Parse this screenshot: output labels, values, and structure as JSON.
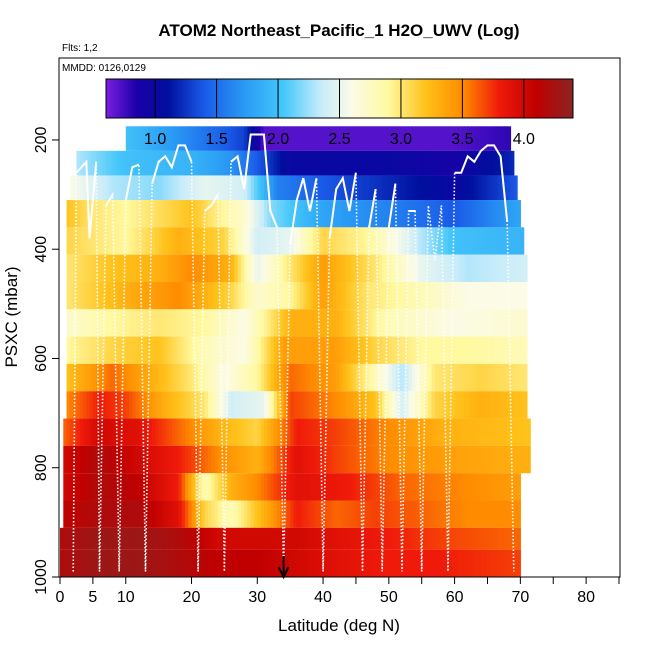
{
  "chart_data": {
    "type": "heatmap",
    "title": "ATOM2 Northeast_Pacific_1 H2O_UWV (Log)",
    "flights_note": "Flts: 1,2",
    "date_note": "MMDD: 0126,0129",
    "xlabel": "Latitude (deg N)",
    "ylabel": "PSXC (mbar)",
    "xlim": [
      0,
      85
    ],
    "ylim": [
      1000,
      50
    ],
    "y_scale": "linear-reversed",
    "x_ticks": [
      0,
      5,
      10,
      20,
      30,
      40,
      50,
      60,
      70,
      80
    ],
    "x_minor_ticks": [
      45,
      55,
      65,
      75,
      85
    ],
    "y_ticks": [
      200,
      400,
      600,
      800,
      1000
    ],
    "colorbar": {
      "range": [
        0.6,
        4.4
      ],
      "ticks": [
        1.0,
        1.5,
        2.0,
        2.5,
        3.0,
        3.5,
        4.0
      ],
      "tick_labels": [
        "1.0",
        "1.5",
        "2.0",
        "2.5",
        "3.0",
        "3.5",
        "4.0"
      ],
      "position": "top inside plot"
    },
    "colormap": [
      {
        "v": 0.6,
        "c": "#7b1fe0"
      },
      {
        "v": 0.85,
        "c": "#1a00a8"
      },
      {
        "v": 1.1,
        "c": "#000e9e"
      },
      {
        "v": 1.4,
        "c": "#1a5ae8"
      },
      {
        "v": 1.75,
        "c": "#2b9ef5"
      },
      {
        "v": 2.05,
        "c": "#45c8fa"
      },
      {
        "v": 2.35,
        "c": "#c8ecfb"
      },
      {
        "v": 2.6,
        "c": "#fbfbe6"
      },
      {
        "v": 2.9,
        "c": "#fff9a0"
      },
      {
        "v": 3.2,
        "c": "#ffc21a"
      },
      {
        "v": 3.5,
        "c": "#ff8c00"
      },
      {
        "v": 3.8,
        "c": "#f01a0a"
      },
      {
        "v": 4.1,
        "c": "#c00000"
      },
      {
        "v": 4.4,
        "c": "#8b2323"
      }
    ],
    "pressure_bands": [
      {
        "p_top": 175,
        "p_bot": 220,
        "x_start": 10,
        "x_end": 68.5,
        "values": [
          [
            10,
            2.0
          ],
          [
            18,
            1.7
          ],
          [
            28,
            1.3
          ],
          [
            31,
            0.7
          ],
          [
            60,
            0.7
          ],
          [
            68.5,
            0.8
          ]
        ]
      },
      {
        "p_top": 220,
        "p_bot": 265,
        "x_start": 2.5,
        "x_end": 69,
        "values": [
          [
            2.5,
            2.3
          ],
          [
            10,
            2.0
          ],
          [
            20,
            1.9
          ],
          [
            26,
            1.7
          ],
          [
            30,
            1.4
          ],
          [
            35,
            1.0
          ],
          [
            50,
            1.0
          ],
          [
            60,
            0.9
          ],
          [
            69,
            1.2
          ]
        ]
      },
      {
        "p_top": 265,
        "p_bot": 310,
        "x_start": 1.5,
        "x_end": 69.5,
        "values": [
          [
            1.5,
            2.6
          ],
          [
            8,
            2.3
          ],
          [
            15,
            2.2
          ],
          [
            22,
            2.5
          ],
          [
            28,
            2.4
          ],
          [
            33,
            1.6
          ],
          [
            40,
            1.4
          ],
          [
            50,
            1.2
          ],
          [
            60,
            1.0
          ],
          [
            69.5,
            1.4
          ]
        ]
      },
      {
        "p_top": 310,
        "p_bot": 360,
        "x_start": 1,
        "x_end": 70,
        "values": [
          [
            1,
            3.2
          ],
          [
            5,
            3.0
          ],
          [
            10,
            2.9
          ],
          [
            20,
            3.2
          ],
          [
            28,
            2.7
          ],
          [
            32,
            2.2
          ],
          [
            40,
            1.8
          ],
          [
            50,
            1.6
          ],
          [
            60,
            1.4
          ],
          [
            70,
            1.8
          ]
        ]
      },
      {
        "p_top": 360,
        "p_bot": 410,
        "x_start": 1,
        "x_end": 70.5,
        "values": [
          [
            1,
            3.1
          ],
          [
            10,
            2.9
          ],
          [
            18,
            3.3
          ],
          [
            25,
            3.1
          ],
          [
            30,
            2.4
          ],
          [
            35,
            2.5
          ],
          [
            40,
            3.1
          ],
          [
            47,
            2.9
          ],
          [
            55,
            2.3
          ],
          [
            60,
            2.0
          ],
          [
            70.5,
            1.9
          ]
        ]
      },
      {
        "p_top": 410,
        "p_bot": 460,
        "x_start": 1,
        "x_end": 71,
        "values": [
          [
            1,
            3.0
          ],
          [
            8,
            3.2
          ],
          [
            15,
            3.3
          ],
          [
            20,
            3.5
          ],
          [
            26,
            3.3
          ],
          [
            30,
            2.5
          ],
          [
            35,
            3.0
          ],
          [
            40,
            3.4
          ],
          [
            48,
            3.0
          ],
          [
            55,
            2.5
          ],
          [
            62,
            2.3
          ],
          [
            71,
            2.4
          ]
        ]
      },
      {
        "p_top": 460,
        "p_bot": 510,
        "x_start": 1,
        "x_end": 71,
        "values": [
          [
            1,
            3.0
          ],
          [
            10,
            3.3
          ],
          [
            18,
            3.5
          ],
          [
            26,
            3.1
          ],
          [
            30,
            2.7
          ],
          [
            35,
            2.9
          ],
          [
            40,
            3.4
          ],
          [
            47,
            3.0
          ],
          [
            55,
            2.8
          ],
          [
            62,
            2.6
          ],
          [
            71,
            2.6
          ]
        ]
      },
      {
        "p_top": 510,
        "p_bot": 560,
        "x_start": 1,
        "x_end": 71,
        "values": [
          [
            1,
            2.7
          ],
          [
            8,
            2.9
          ],
          [
            15,
            3.0
          ],
          [
            22,
            2.9
          ],
          [
            28,
            2.6
          ],
          [
            35,
            3.3
          ],
          [
            42,
            3.3
          ],
          [
            50,
            2.8
          ],
          [
            60,
            2.6
          ],
          [
            71,
            2.7
          ]
        ]
      },
      {
        "p_top": 560,
        "p_bot": 610,
        "x_start": 1,
        "x_end": 71,
        "values": [
          [
            1,
            2.9
          ],
          [
            8,
            3.1
          ],
          [
            15,
            3.2
          ],
          [
            22,
            2.8
          ],
          [
            28,
            2.6
          ],
          [
            34,
            3.4
          ],
          [
            42,
            3.4
          ],
          [
            48,
            3.1
          ],
          [
            55,
            2.9
          ],
          [
            62,
            2.9
          ],
          [
            71,
            2.8
          ]
        ]
      },
      {
        "p_top": 610,
        "p_bot": 660,
        "x_start": 1,
        "x_end": 71,
        "values": [
          [
            1,
            3.2
          ],
          [
            8,
            3.6
          ],
          [
            14,
            3.3
          ],
          [
            20,
            3.0
          ],
          [
            25,
            2.6
          ],
          [
            30,
            2.9
          ],
          [
            35,
            3.6
          ],
          [
            42,
            3.4
          ],
          [
            47,
            2.9
          ],
          [
            52,
            2.3
          ],
          [
            57,
            3.0
          ],
          [
            64,
            3.1
          ],
          [
            71,
            3.0
          ]
        ]
      },
      {
        "p_top": 660,
        "p_bot": 710,
        "x_start": 1,
        "x_end": 71,
        "values": [
          [
            1,
            3.5
          ],
          [
            6,
            3.8
          ],
          [
            10,
            3.7
          ],
          [
            16,
            3.3
          ],
          [
            22,
            3.0
          ],
          [
            26,
            2.4
          ],
          [
            31,
            2.5
          ],
          [
            35,
            3.7
          ],
          [
            42,
            3.5
          ],
          [
            48,
            3.2
          ],
          [
            52,
            2.4
          ],
          [
            57,
            3.1
          ],
          [
            64,
            3.3
          ],
          [
            71,
            3.2
          ]
        ]
      },
      {
        "p_top": 710,
        "p_bot": 760,
        "x_start": 0.5,
        "x_end": 71.5,
        "values": [
          [
            0.5,
            3.6
          ],
          [
            6,
            4.0
          ],
          [
            12,
            3.9
          ],
          [
            18,
            3.6
          ],
          [
            24,
            3.3
          ],
          [
            30,
            3.1
          ],
          [
            36,
            3.8
          ],
          [
            42,
            3.7
          ],
          [
            50,
            3.5
          ],
          [
            58,
            3.3
          ],
          [
            71.5,
            3.2
          ]
        ]
      },
      {
        "p_top": 760,
        "p_bot": 810,
        "x_start": 0.5,
        "x_end": 71.5,
        "values": [
          [
            0.5,
            4.0
          ],
          [
            6,
            4.2
          ],
          [
            12,
            4.0
          ],
          [
            18,
            3.8
          ],
          [
            24,
            3.5
          ],
          [
            30,
            3.3
          ],
          [
            36,
            3.9
          ],
          [
            42,
            3.7
          ],
          [
            50,
            3.5
          ],
          [
            58,
            3.4
          ],
          [
            71.5,
            3.3
          ]
        ]
      },
      {
        "p_top": 810,
        "p_bot": 860,
        "x_start": 0.5,
        "x_end": 70,
        "values": [
          [
            0.5,
            4.0
          ],
          [
            6,
            4.2
          ],
          [
            12,
            4.1
          ],
          [
            18,
            3.8
          ],
          [
            22,
            2.8
          ],
          [
            26,
            3.3
          ],
          [
            30,
            3.5
          ],
          [
            36,
            3.9
          ],
          [
            44,
            3.8
          ],
          [
            52,
            3.6
          ],
          [
            62,
            3.5
          ],
          [
            70,
            3.4
          ]
        ]
      },
      {
        "p_top": 860,
        "p_bot": 910,
        "x_start": 0.5,
        "x_end": 70,
        "values": [
          [
            0.5,
            4.1
          ],
          [
            6,
            4.2
          ],
          [
            12,
            4.2
          ],
          [
            18,
            3.9
          ],
          [
            22,
            3.1
          ],
          [
            26,
            2.8
          ],
          [
            30,
            3.2
          ],
          [
            36,
            3.8
          ],
          [
            42,
            3.6
          ],
          [
            48,
            3.7
          ],
          [
            56,
            3.6
          ],
          [
            62,
            3.5
          ],
          [
            70,
            3.5
          ]
        ]
      },
      {
        "p_top": 910,
        "p_bot": 950,
        "x_start": 0,
        "x_end": 70,
        "values": [
          [
            0,
            4.2
          ],
          [
            6,
            4.3
          ],
          [
            12,
            4.3
          ],
          [
            18,
            4.2
          ],
          [
            24,
            4.0
          ],
          [
            30,
            4.0
          ],
          [
            36,
            4.0
          ],
          [
            42,
            3.9
          ],
          [
            50,
            3.8
          ],
          [
            58,
            3.7
          ],
          [
            70,
            3.6
          ]
        ]
      },
      {
        "p_top": 950,
        "p_bot": 1000,
        "x_start": 0,
        "x_end": 70,
        "values": [
          [
            0,
            4.2
          ],
          [
            6,
            4.3
          ],
          [
            12,
            4.3
          ],
          [
            18,
            4.2
          ],
          [
            24,
            4.1
          ],
          [
            30,
            4.1
          ],
          [
            36,
            4.0
          ],
          [
            42,
            3.9
          ],
          [
            50,
            3.8
          ],
          [
            58,
            3.8
          ],
          [
            70,
            3.7
          ]
        ]
      }
    ],
    "white_profile_line": [
      [
        2,
        990
      ],
      [
        2.5,
        260
      ],
      [
        4,
        240
      ],
      [
        4.5,
        380
      ],
      [
        5.5,
        240
      ],
      [
        6,
        990
      ],
      [
        7,
        320
      ],
      [
        8,
        300
      ],
      [
        9,
        990
      ],
      [
        10,
        310
      ],
      [
        11,
        250
      ],
      [
        12,
        245
      ],
      [
        13,
        990
      ],
      [
        14,
        280
      ],
      [
        15,
        240
      ],
      [
        16,
        230
      ],
      [
        17,
        250
      ],
      [
        18,
        210
      ],
      [
        19,
        210
      ],
      [
        20,
        240
      ],
      [
        21,
        990
      ],
      [
        22,
        330
      ],
      [
        23,
        320
      ],
      [
        24,
        300
      ],
      [
        25,
        990
      ],
      [
        26,
        240
      ],
      [
        27,
        230
      ],
      [
        28,
        290
      ],
      [
        29,
        190
      ],
      [
        31,
        190
      ],
      [
        32,
        330
      ],
      [
        33,
        360
      ],
      [
        34,
        990
      ],
      [
        35,
        390
      ],
      [
        36,
        310
      ],
      [
        37,
        270
      ],
      [
        38,
        330
      ],
      [
        39,
        270
      ],
      [
        40,
        990
      ],
      [
        41,
        380
      ],
      [
        42,
        290
      ],
      [
        43,
        270
      ],
      [
        44,
        330
      ],
      [
        45,
        260
      ],
      [
        46,
        990
      ],
      [
        47,
        360
      ],
      [
        48,
        290
      ],
      [
        49,
        990
      ],
      [
        50,
        360
      ],
      [
        51,
        280
      ],
      [
        52,
        990
      ],
      [
        53,
        330
      ],
      [
        54,
        330
      ],
      [
        55,
        990
      ],
      [
        56,
        320
      ],
      [
        57,
        420
      ],
      [
        58,
        320
      ],
      [
        59,
        990
      ],
      [
        60,
        260
      ],
      [
        61,
        260
      ],
      [
        62,
        230
      ],
      [
        63,
        240
      ],
      [
        64,
        220
      ],
      [
        65,
        210
      ],
      [
        66,
        210
      ],
      [
        67,
        230
      ],
      [
        68,
        350
      ],
      [
        69,
        990
      ]
    ],
    "arrow_marker": {
      "x": 34,
      "label": "↓"
    }
  }
}
